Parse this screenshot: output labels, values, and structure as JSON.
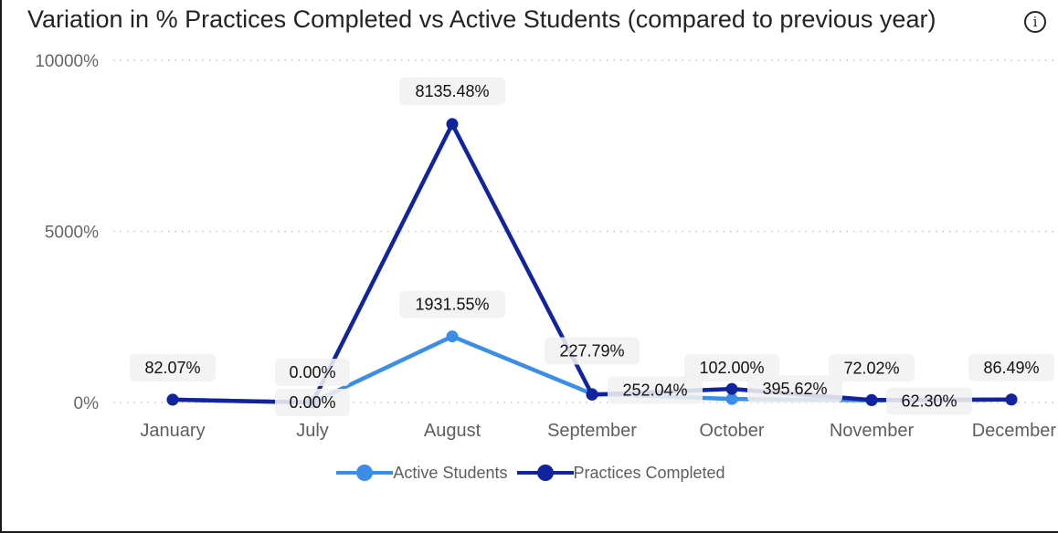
{
  "chart_data": {
    "type": "line",
    "title": "Variation in % Practices Completed vs Active Students (compared to previous year)",
    "categories": [
      "January",
      "July",
      "August",
      "September",
      "October",
      "November",
      "December"
    ],
    "yticks": [
      "10000%",
      "5000%",
      "0%"
    ],
    "ylim": [
      0,
      10000
    ],
    "xlabel": "",
    "ylabel": "",
    "grid": true,
    "legend_position": "bottom",
    "series": [
      {
        "name": "Active Students",
        "color": "#3a8ee6",
        "values": [
          82.07,
          0.0,
          1931.55,
          252.04,
          102.0,
          62.3,
          86.49
        ],
        "labels": [
          "82.07%",
          "0.00%",
          "1931.55%",
          "252.04%",
          "102.00%",
          "62.30%",
          "86.49%"
        ]
      },
      {
        "name": "Practices Completed",
        "color": "#12239e",
        "values": [
          82.07,
          0.0,
          8135.48,
          227.79,
          395.62,
          72.02,
          86.49
        ],
        "labels": [
          "82.07%",
          "0.00%",
          "8135.48%",
          "227.79%",
          "395.62%",
          "72.02%",
          "86.49%"
        ]
      }
    ]
  },
  "icons": {
    "info": "info-icon",
    "info_glyph": "i"
  }
}
